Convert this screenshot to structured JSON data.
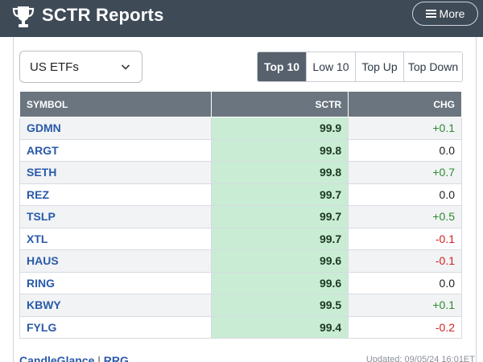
{
  "header": {
    "title": "SCTR Reports",
    "more_label": "More"
  },
  "filter": {
    "selected": "US ETFs"
  },
  "tabs": [
    {
      "label": "Top 10",
      "active": true
    },
    {
      "label": "Low 10",
      "active": false
    },
    {
      "label": "Top Up",
      "active": false
    },
    {
      "label": "Top Down",
      "active": false
    }
  ],
  "table": {
    "columns": [
      "SYMBOL",
      "SCTR",
      "CHG"
    ],
    "rows": [
      {
        "symbol": "GDMN",
        "sctr": "99.9",
        "chg": "+0.1",
        "dir": "pos"
      },
      {
        "symbol": "ARGT",
        "sctr": "99.8",
        "chg": "0.0",
        "dir": "flat"
      },
      {
        "symbol": "SETH",
        "sctr": "99.8",
        "chg": "+0.7",
        "dir": "pos"
      },
      {
        "symbol": "REZ",
        "sctr": "99.7",
        "chg": "0.0",
        "dir": "flat"
      },
      {
        "symbol": "TSLP",
        "sctr": "99.7",
        "chg": "+0.5",
        "dir": "pos"
      },
      {
        "symbol": "XTL",
        "sctr": "99.7",
        "chg": "-0.1",
        "dir": "neg"
      },
      {
        "symbol": "HAUS",
        "sctr": "99.6",
        "chg": "-0.1",
        "dir": "neg"
      },
      {
        "symbol": "RING",
        "sctr": "99.6",
        "chg": "0.0",
        "dir": "flat"
      },
      {
        "symbol": "KBWY",
        "sctr": "99.5",
        "chg": "+0.1",
        "dir": "pos"
      },
      {
        "symbol": "FYLG",
        "sctr": "99.4",
        "chg": "-0.2",
        "dir": "neg"
      }
    ]
  },
  "footer": {
    "link1": "CandleGlance",
    "separator": "|",
    "link2": "RRG",
    "updated": "Updated: 09/05/24 16:01ET"
  },
  "colors": {
    "header_bg": "#3f4a57",
    "sctr_cell_bg": "#c9ecd4",
    "positive": "#2e8b2e",
    "negative": "#d32020",
    "symbol_link": "#2a5aa8"
  }
}
